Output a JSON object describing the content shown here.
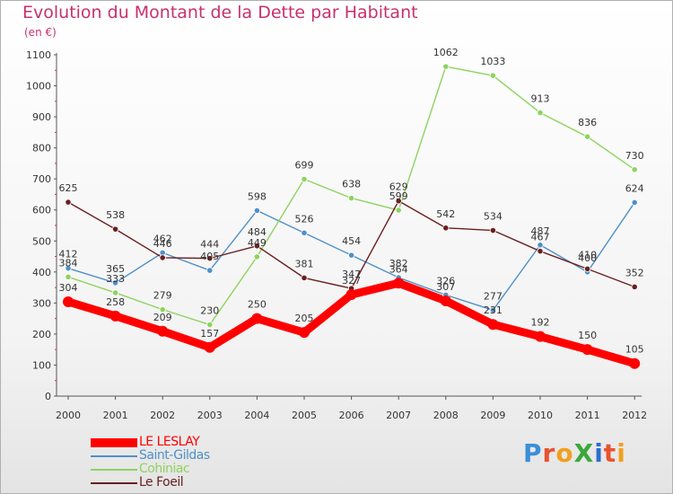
{
  "title": "Evolution du Montant de la Dette par Habitant",
  "subtitle": "(en €)",
  "brand": {
    "text": "ProXiti",
    "letter_colors": [
      "#3b8fd6",
      "#e8522f",
      "#f0a020",
      "#3aa83a",
      "#2b6fcf",
      "#e8522f",
      "#f0a020"
    ]
  },
  "chart_data": {
    "type": "line",
    "x": [
      "2000",
      "2001",
      "2002",
      "2003",
      "2004",
      "2005",
      "2006",
      "2007",
      "2008",
      "2009",
      "2010",
      "2011",
      "2012"
    ],
    "ylim": [
      0,
      1100
    ],
    "yticks": [
      0,
      100,
      200,
      300,
      400,
      500,
      600,
      700,
      800,
      900,
      1000,
      1100
    ],
    "grid": false,
    "legend_position": "bottom-left",
    "series": [
      {
        "name": "LE LESLAY",
        "color": "#ff0000",
        "values": [
          304,
          258,
          209,
          157,
          250,
          205,
          327,
          364,
          307,
          231,
          192,
          150,
          105
        ],
        "labels": [
          "304",
          "258",
          "209",
          "157",
          "250",
          "205",
          "327",
          "364",
          "307",
          "231",
          "192",
          "150",
          "105"
        ]
      },
      {
        "name": "Saint-Gildas",
        "color": "#4f90c8",
        "values": [
          412,
          365,
          462,
          405,
          598,
          526,
          454,
          382,
          326,
          277,
          487,
          400,
          624
        ],
        "labels": [
          "412",
          "365",
          "462",
          "405",
          "598",
          "526",
          "454",
          "382",
          "326",
          "277",
          "487",
          "400",
          "624"
        ]
      },
      {
        "name": "Cohiniac",
        "color": "#8ed35e",
        "values": [
          384,
          333,
          279,
          230,
          449,
          699,
          638,
          599,
          1062,
          1033,
          913,
          836,
          730
        ],
        "labels": [
          "384",
          "333",
          "279",
          "230",
          "449",
          "699",
          "638",
          "599",
          "1062",
          "1033",
          "913",
          "836",
          "730"
        ]
      },
      {
        "name": "Le Foeil",
        "color": "#6a1f1f",
        "values": [
          625,
          538,
          446,
          444,
          484,
          381,
          347,
          629,
          542,
          534,
          467,
          410,
          352
        ],
        "labels": [
          "625",
          "538",
          "446",
          "444",
          "484",
          "381",
          "347",
          "629",
          "542",
          "534",
          "467",
          "410",
          "352"
        ]
      }
    ]
  }
}
